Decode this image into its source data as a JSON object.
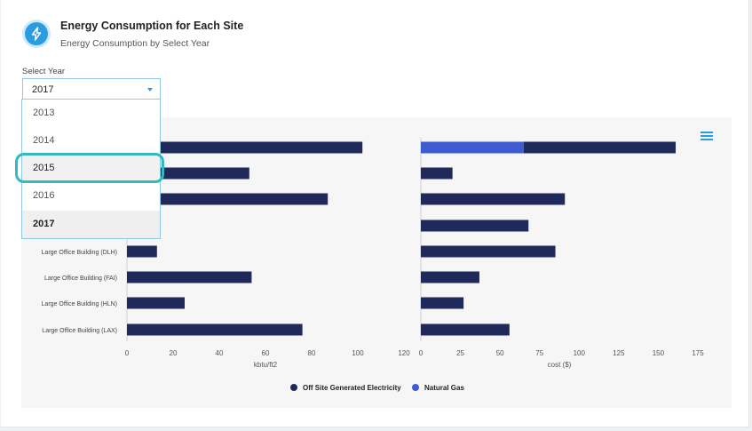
{
  "header": {
    "title": "Energy Consumption for Each Site",
    "subtitle": "Energy Consumption by Select Year",
    "icon": "lightning-bolt-icon"
  },
  "year_select": {
    "label": "Select Year",
    "value": "2017",
    "options": [
      "2013",
      "2014",
      "2015",
      "2016",
      "2017"
    ],
    "highlighted": "2015"
  },
  "colors": {
    "electricity": "#1f2a5b",
    "natural_gas": "#3f5bd1",
    "accent": "#2a9de0",
    "highlight": "#33b9c1"
  },
  "chart_data": [
    {
      "type": "bar",
      "orientation": "horizontal",
      "categories": [
        "",
        "",
        "",
        "",
        "Large Office Building (DLH)",
        "Large Office Building (FAI)",
        "Large Office Building (HLN)",
        "Large Office Building (LAX)"
      ],
      "series": [
        {
          "name": "Off Site Generated Electricity",
          "values": [
            102,
            53,
            87,
            0,
            13,
            54,
            25,
            76
          ]
        }
      ],
      "xlabel": "kbtu/ft2",
      "xlim": [
        0,
        120
      ],
      "xticks": [
        "0",
        "20",
        "40",
        "60",
        "80",
        "100",
        "120"
      ]
    },
    {
      "type": "bar",
      "orientation": "horizontal",
      "stacked": true,
      "categories": [
        "",
        "",
        "",
        "",
        "Large Office Building (DLH)",
        "Large Office Building (FAI)",
        "Large Office Building (HLN)",
        "Large Office Building (LAX)"
      ],
      "series": [
        {
          "name": "Natural Gas",
          "values": [
            65,
            0,
            0,
            0,
            0,
            0,
            0,
            0
          ]
        },
        {
          "name": "Off Site Generated Electricity",
          "values": [
            96,
            20,
            91,
            68,
            85,
            37,
            27,
            56
          ]
        }
      ],
      "xlabel": "cost ($)",
      "xlim": [
        0,
        175
      ],
      "xticks": [
        "0",
        "25",
        "50",
        "75",
        "100",
        "125",
        "150",
        "175"
      ]
    }
  ],
  "legend": {
    "items": [
      "Off Site Generated Electricity",
      "Natural Gas"
    ],
    "position": "bottom"
  }
}
